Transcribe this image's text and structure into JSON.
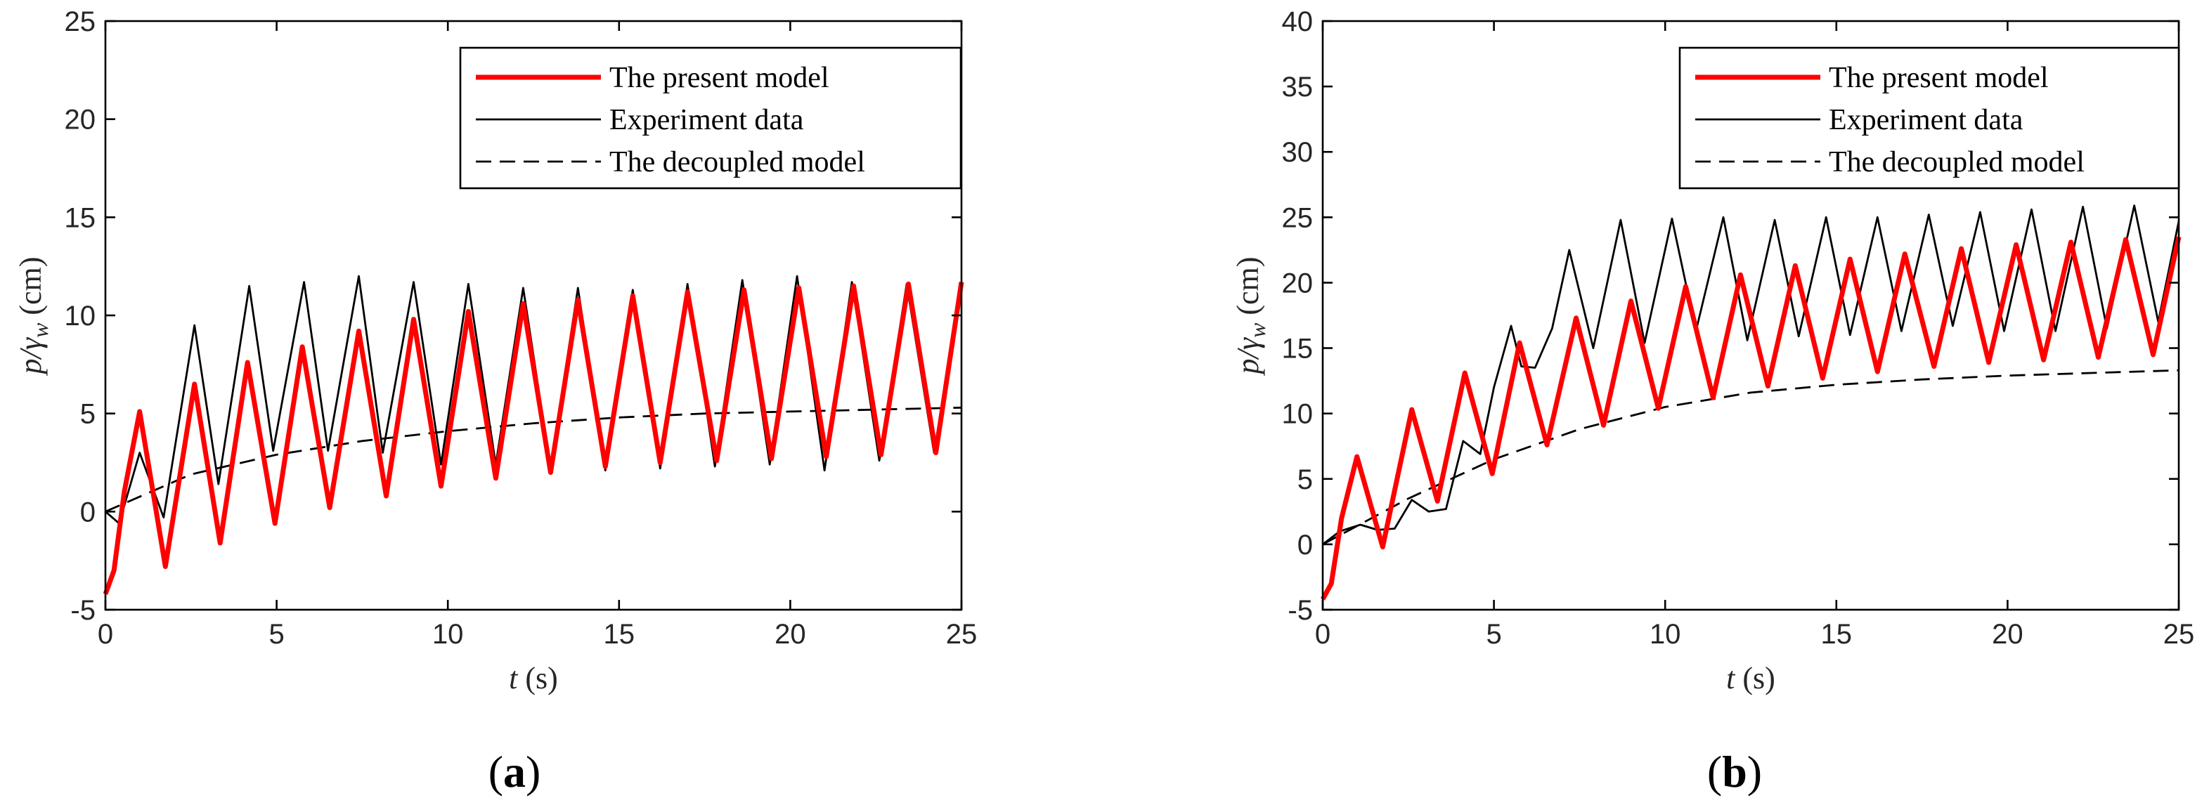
{
  "chart_data": [
    {
      "type": "line",
      "panel_label": "a",
      "xlabel_var": "t",
      "xlabel_unit": " (s)",
      "ylabel_main": "p/γ",
      "ylabel_sub": "w",
      "ylabel_unit": " (cm)",
      "xlim": [
        0,
        25
      ],
      "ylim": [
        -5,
        25
      ],
      "xticks": [
        0,
        5,
        10,
        15,
        20,
        25
      ],
      "yticks": [
        -5,
        0,
        5,
        10,
        15,
        20,
        25
      ],
      "legend_position": "top-right",
      "series": [
        {
          "name": "The present model",
          "style": "solid-red",
          "x": [
            0,
            0.25,
            0.55,
            1.0,
            1.75,
            2.6,
            3.35,
            4.15,
            4.95,
            5.75,
            6.55,
            7.4,
            8.2,
            9.0,
            9.8,
            10.6,
            11.4,
            12.2,
            13.0,
            13.8,
            14.6,
            15.4,
            16.2,
            17.0,
            17.85,
            18.65,
            19.45,
            20.25,
            21.05,
            21.85,
            22.65,
            23.45,
            24.25,
            25
          ],
          "y": [
            -4.2,
            -3.0,
            1.0,
            5.1,
            -2.8,
            6.5,
            -1.6,
            7.6,
            -0.6,
            8.4,
            0.2,
            9.2,
            0.8,
            9.8,
            1.3,
            10.2,
            1.7,
            10.6,
            2.0,
            10.8,
            2.3,
            11.0,
            2.5,
            11.2,
            2.6,
            11.3,
            2.7,
            11.4,
            2.8,
            11.5,
            2.9,
            11.6,
            3.0,
            11.7
          ]
        },
        {
          "name": "Experiment data",
          "style": "solid-black",
          "x": [
            0,
            0.4,
            1.0,
            1.7,
            2.6,
            3.3,
            4.2,
            4.9,
            5.8,
            6.5,
            7.4,
            8.1,
            9.0,
            9.8,
            10.6,
            11.4,
            12.2,
            13.0,
            13.8,
            14.6,
            15.4,
            16.2,
            17.0,
            17.8,
            18.6,
            19.4,
            20.2,
            21.0,
            21.8,
            22.6,
            23.4,
            24.2,
            25
          ],
          "y": [
            0.0,
            -0.6,
            3.0,
            -0.3,
            9.5,
            1.4,
            11.5,
            3.1,
            11.7,
            3.1,
            12.0,
            3.0,
            11.7,
            2.4,
            11.6,
            2.4,
            11.4,
            2.2,
            11.4,
            2.1,
            11.3,
            2.2,
            11.6,
            2.3,
            11.8,
            2.4,
            12.0,
            2.1,
            11.7,
            2.6,
            11.6,
            3.0,
            11.7
          ]
        },
        {
          "name": "The decoupled model",
          "style": "dashed-black",
          "x": [
            0,
            2.5,
            5,
            7.5,
            10,
            12.5,
            15,
            17.5,
            20,
            22.5,
            25
          ],
          "y": [
            0.0,
            1.9,
            2.9,
            3.6,
            4.1,
            4.5,
            4.8,
            5.0,
            5.1,
            5.2,
            5.3
          ]
        }
      ]
    },
    {
      "type": "line",
      "panel_label": "b",
      "xlabel_var": "t",
      "xlabel_unit": " (s)",
      "ylabel_main": "p/γ",
      "ylabel_sub": "w",
      "ylabel_unit": " (cm)",
      "xlim": [
        0,
        25
      ],
      "ylim": [
        -5,
        40
      ],
      "xticks": [
        0,
        5,
        10,
        15,
        20,
        25
      ],
      "yticks": [
        -5,
        0,
        5,
        10,
        15,
        20,
        25,
        30,
        35,
        40
      ],
      "legend_position": "top-right",
      "series": [
        {
          "name": "The present model",
          "style": "solid-red",
          "x": [
            0,
            0.25,
            0.55,
            1.0,
            1.75,
            2.6,
            3.35,
            4.15,
            4.95,
            5.75,
            6.55,
            7.4,
            8.2,
            9.0,
            9.8,
            10.6,
            11.4,
            12.2,
            13.0,
            13.8,
            14.6,
            15.4,
            16.2,
            17.0,
            17.85,
            18.65,
            19.45,
            20.25,
            21.05,
            21.85,
            22.65,
            23.45,
            24.25,
            25
          ],
          "y": [
            -4.2,
            -3.0,
            2.0,
            6.7,
            -0.2,
            10.3,
            3.3,
            13.1,
            5.4,
            15.4,
            7.6,
            17.3,
            9.1,
            18.6,
            10.4,
            19.7,
            11.2,
            20.6,
            12.1,
            21.3,
            12.7,
            21.8,
            13.2,
            22.2,
            13.6,
            22.6,
            13.9,
            22.9,
            14.1,
            23.1,
            14.3,
            23.3,
            14.5,
            23.5
          ]
        },
        {
          "name": "Experiment data",
          "style": "solid-black",
          "x": [
            0,
            0.5,
            1.1,
            1.6,
            2.1,
            2.6,
            3.1,
            3.6,
            4.1,
            4.6,
            5.0,
            5.5,
            5.8,
            6.2,
            6.7,
            7.2,
            7.9,
            8.7,
            9.4,
            10.2,
            10.9,
            11.7,
            12.4,
            13.2,
            13.9,
            14.7,
            15.4,
            16.2,
            16.9,
            17.7,
            18.4,
            19.2,
            19.9,
            20.7,
            21.4,
            22.2,
            22.9,
            23.7,
            24.4,
            25
          ],
          "y": [
            0.0,
            1.0,
            1.5,
            1.1,
            1.2,
            3.4,
            2.5,
            2.7,
            7.9,
            6.9,
            12.0,
            16.7,
            13.6,
            13.5,
            16.5,
            22.5,
            15.0,
            24.8,
            15.4,
            24.9,
            16.3,
            25.0,
            15.6,
            24.8,
            15.9,
            25.0,
            16.0,
            25.0,
            16.3,
            25.2,
            16.7,
            25.4,
            16.3,
            25.6,
            16.3,
            25.8,
            16.5,
            25.9,
            17.0,
            24.7
          ]
        },
        {
          "name": "The decoupled model",
          "style": "dashed-black",
          "x": [
            0,
            2.5,
            5,
            7.5,
            10,
            12.5,
            15,
            17.5,
            20,
            22.5,
            25
          ],
          "y": [
            0.0,
            3.5,
            6.5,
            8.8,
            10.5,
            11.6,
            12.2,
            12.6,
            12.9,
            13.1,
            13.3
          ]
        }
      ]
    }
  ]
}
